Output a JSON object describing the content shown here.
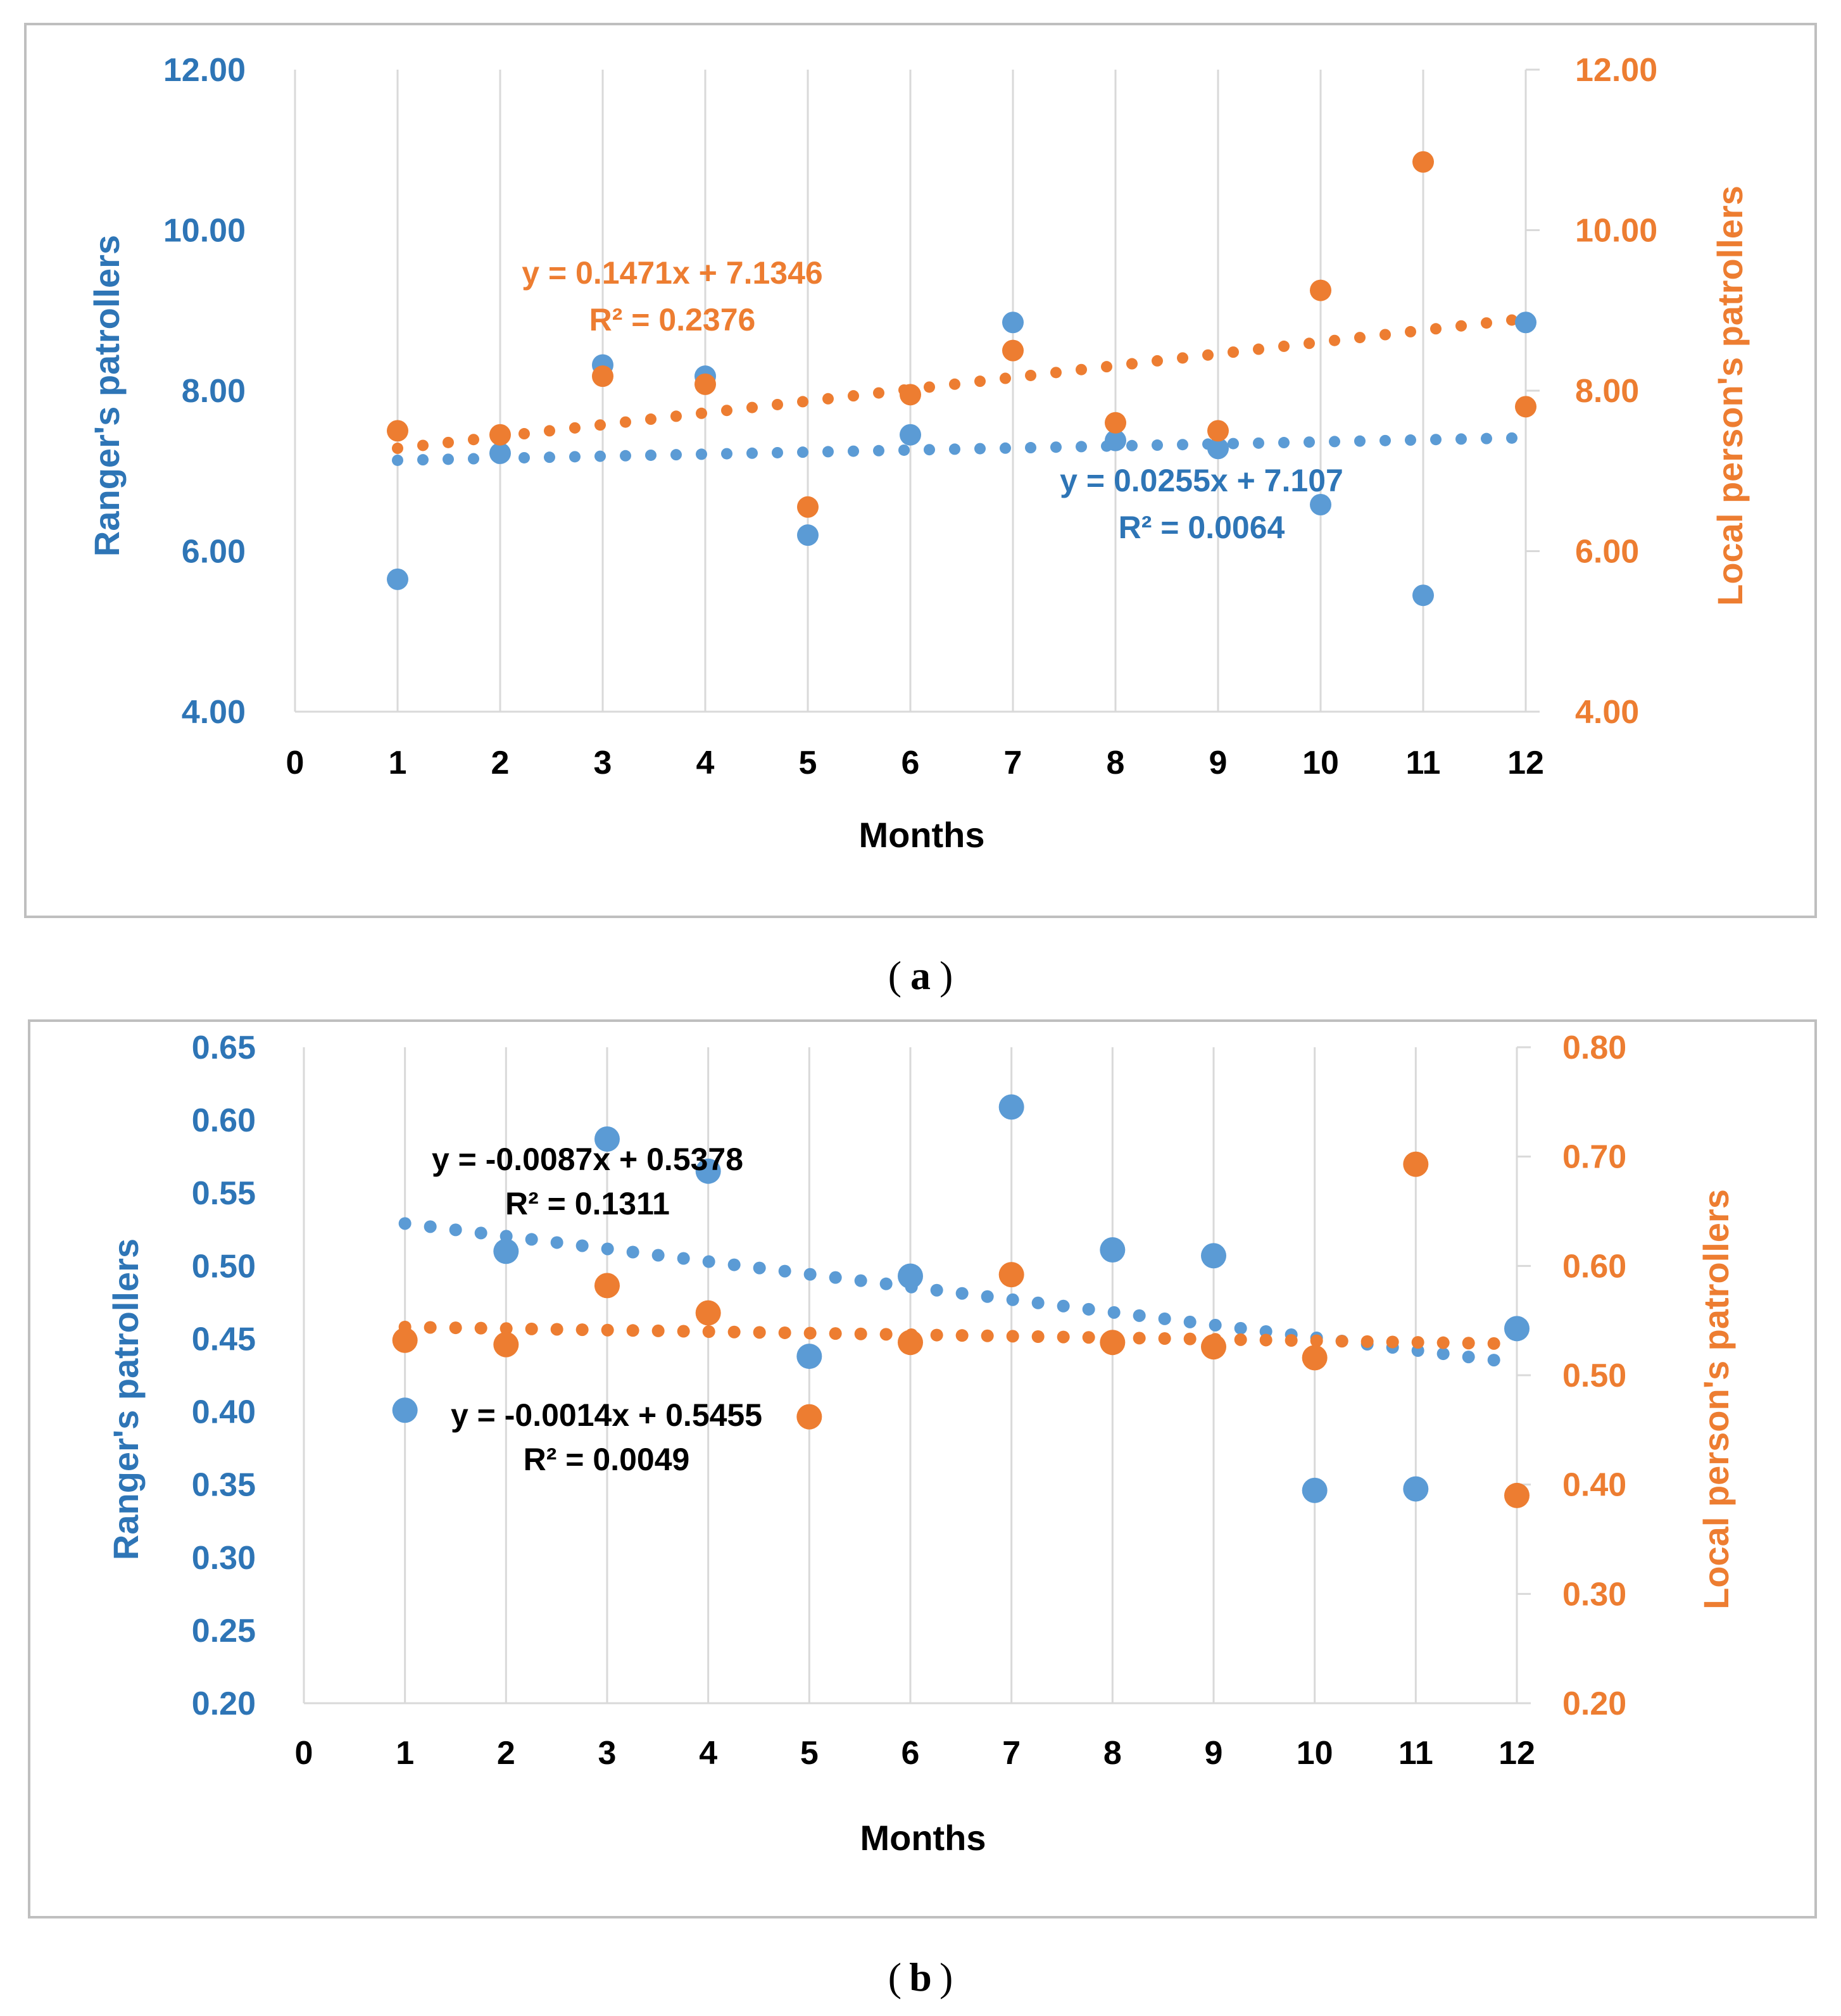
{
  "colors": {
    "blue": "#5B9BD5",
    "blue_text": "#2E75B6",
    "orange": "#ED7D31",
    "grid": "#D9D9D9",
    "frame": "#BFBFBF",
    "black": "#000000"
  },
  "chart_data": [
    {
      "type": "scatter",
      "caption_letter": "a",
      "xlabel": "Months",
      "ylabel_left": "Ranger's patrollers",
      "ylabel_right": "Local person's patrollers",
      "x_ticks": [
        "0",
        "1",
        "2",
        "3",
        "4",
        "5",
        "6",
        "7",
        "8",
        "9",
        "10",
        "11",
        "12"
      ],
      "y_left_ticks": [
        "4.00",
        "6.00",
        "8.00",
        "10.00",
        "12.00"
      ],
      "y_right_ticks": [
        "4.00",
        "6.00",
        "8.00",
        "10.00",
        "12.00"
      ],
      "xlim": [
        0,
        12
      ],
      "ylim_left": [
        4,
        12
      ],
      "ylim_right": [
        4,
        12
      ],
      "series": [
        {
          "name": "Ranger's patrollers",
          "color_key": "blue",
          "axis": "left",
          "x": [
            1,
            2,
            3,
            4,
            5,
            6,
            7,
            8,
            9,
            10,
            11,
            12
          ],
          "values": [
            5.65,
            7.22,
            8.32,
            8.18,
            6.2,
            7.45,
            8.85,
            7.38,
            7.28,
            6.58,
            5.45,
            8.85
          ],
          "trend": {
            "slope": 0.0255,
            "intercept": 7.107
          },
          "equation": "y = 0.0255x + 7.107",
          "r2": "R² = 0.0064"
        },
        {
          "name": "Local person's patrollers",
          "color_key": "orange",
          "axis": "right",
          "x": [
            1,
            2,
            3,
            4,
            5,
            6,
            7,
            8,
            9,
            10,
            11,
            12
          ],
          "values": [
            7.5,
            7.45,
            8.18,
            8.08,
            6.55,
            7.95,
            8.5,
            7.6,
            7.5,
            9.25,
            10.85,
            7.8
          ],
          "trend": {
            "slope": 0.1471,
            "intercept": 7.1346
          },
          "equation": "y = 0.1471x + 7.1346",
          "r2": "R² = 0.2376"
        }
      ]
    },
    {
      "type": "scatter",
      "caption_letter": "b",
      "xlabel": "Months",
      "ylabel_left": "Ranger's patrollers",
      "ylabel_right": "Local person's patrollers",
      "x_ticks": [
        "0",
        "1",
        "2",
        "3",
        "4",
        "5",
        "6",
        "7",
        "8",
        "9",
        "10",
        "11",
        "12"
      ],
      "y_left_ticks": [
        "0.20",
        "0.25",
        "0.30",
        "0.35",
        "0.40",
        "0.45",
        "0.50",
        "0.55",
        "0.60",
        "0.65"
      ],
      "y_right_ticks": [
        "0.20",
        "0.30",
        "0.40",
        "0.50",
        "0.60",
        "0.70",
        "0.80"
      ],
      "xlim": [
        0,
        12
      ],
      "ylim_left": [
        0.2,
        0.65
      ],
      "ylim_right": [
        0.2,
        0.8
      ],
      "series": [
        {
          "name": "Ranger's patrollers",
          "color_key": "blue",
          "axis": "left",
          "x": [
            1,
            2,
            3,
            4,
            5,
            6,
            7,
            8,
            9,
            10,
            11,
            12
          ],
          "values": [
            0.401,
            0.51,
            0.587,
            0.565,
            0.438,
            0.493,
            0.609,
            0.511,
            0.507,
            0.346,
            0.347,
            0.457
          ],
          "trend": {
            "slope": -0.0087,
            "intercept": 0.5378
          },
          "equation": "y = -0.0087x + 0.5378",
          "r2": "R² = 0.1311"
        },
        {
          "name": "Local person's patrollers",
          "color_key": "orange",
          "axis": "right",
          "x": [
            1,
            2,
            3,
            4,
            5,
            6,
            7,
            8,
            9,
            10,
            11,
            12
          ],
          "values": [
            0.532,
            0.528,
            0.582,
            0.557,
            0.462,
            0.53,
            0.592,
            0.53,
            0.526,
            0.516,
            0.693,
            0.39
          ],
          "trend": {
            "slope": -0.0014,
            "intercept": 0.5455
          },
          "equation": "y = -0.0014x + 0.5455",
          "r2": "R² = 0.0049"
        }
      ]
    }
  ]
}
